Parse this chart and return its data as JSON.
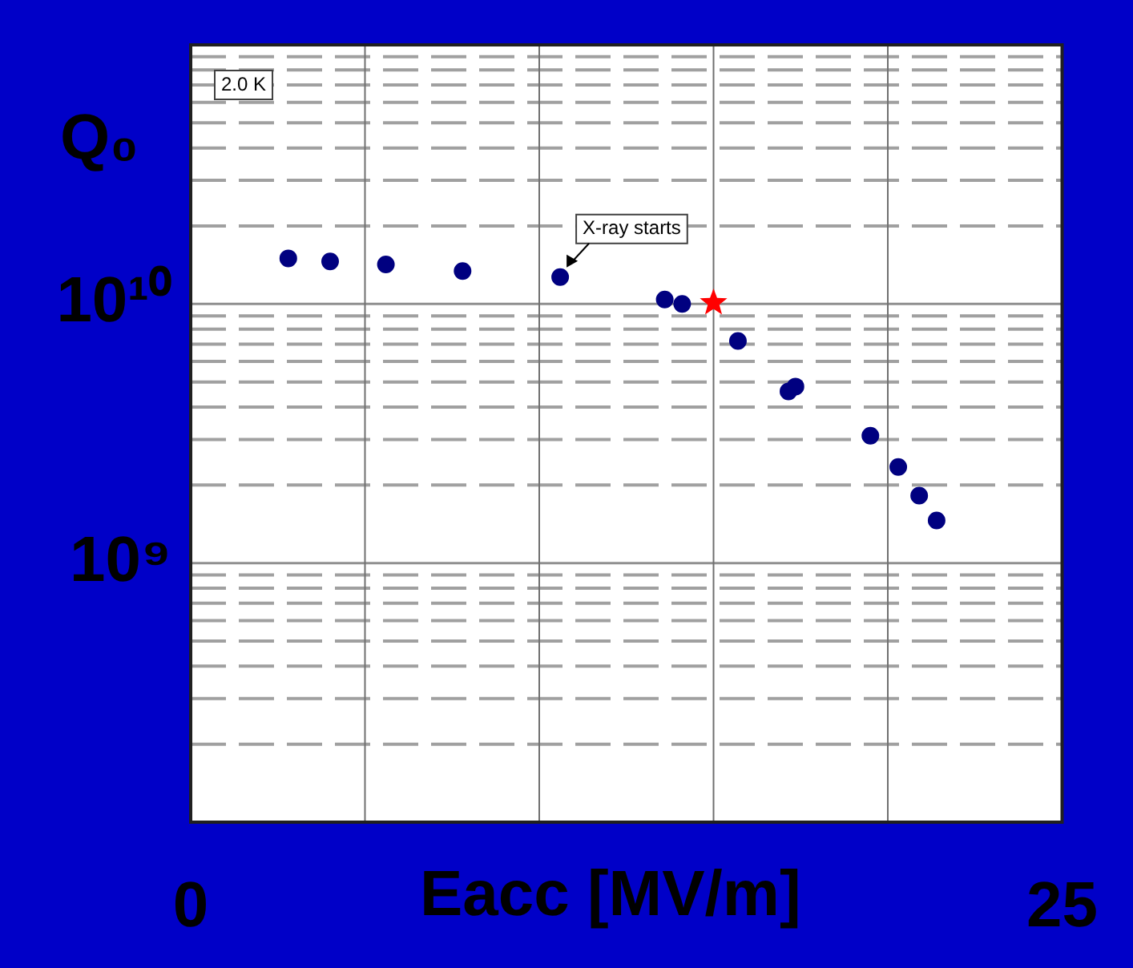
{
  "chart_data": {
    "type": "scatter",
    "ylabel": "Q₀",
    "xlabel": "Eacc [MV/m]",
    "log": "y",
    "grid": true,
    "legend": false,
    "xlim": [
      0,
      25
    ],
    "xticks": [
      0,
      {
        "value": 5,
        "label": null
      },
      {
        "value": 10,
        "label": null
      },
      {
        "value": 15,
        "label": null
      },
      {
        "value": 20,
        "label": null
      },
      25
    ],
    "ylim": [
      100000000.0,
      100000000000.0
    ],
    "yticks": [
      {
        "value": 100000000.0,
        "label": null
      },
      {
        "value": 200000000.0,
        "label": null
      },
      {
        "value": 300000000.0,
        "label": null
      },
      {
        "value": 400000000.0,
        "label": null
      },
      {
        "value": 500000000.0,
        "label": null
      },
      {
        "value": 600000000.0,
        "label": null
      },
      {
        "value": 700000000.0,
        "label": null
      },
      {
        "value": 800000000.0,
        "label": null
      },
      {
        "value": 900000000.0,
        "label": null
      },
      {
        "value": 1000000000.0,
        "label": "10⁹"
      },
      {
        "value": 2000000000.0,
        "label": null
      },
      {
        "value": 3000000000.0,
        "label": null
      },
      {
        "value": 4000000000.0,
        "label": null
      },
      {
        "value": 5000000000.0,
        "label": null
      },
      {
        "value": 6000000000.0,
        "label": null
      },
      {
        "value": 7000000000.0,
        "label": null
      },
      {
        "value": 8000000000.0,
        "label": null
      },
      {
        "value": 9000000000.0,
        "label": null
      },
      {
        "value": 10000000000.0,
        "label": "10¹⁰"
      },
      {
        "value": 20000000000.0,
        "label": null
      },
      {
        "value": 30000000000.0,
        "label": null
      },
      {
        "value": 40000000000.0,
        "label": null
      },
      {
        "value": 50000000000.0,
        "label": null
      },
      {
        "value": 60000000000.0,
        "label": null
      },
      {
        "value": 70000000000.0,
        "label": null
      },
      {
        "value": 80000000000.0,
        "label": null
      },
      {
        "value": 90000000000.0,
        "label": null
      },
      {
        "value": 100000000000.0,
        "label": null
      }
    ],
    "series": [
      {
        "color": "#000080",
        "marker": "circle",
        "x": [
          2.8,
          4.0,
          5.6,
          7.8,
          10.6,
          13.6,
          14.1,
          15.7,
          17.15,
          17.35,
          19.5,
          20.3,
          20.9,
          21.4
        ],
        "values": [
          15000000000.0,
          14600000000.0,
          14200000000.0,
          13400000000.0,
          12700000000.0,
          10400000000.0,
          10000000000.0,
          7200000000.0,
          4600000000.0,
          4800000000.0,
          3100000000.0,
          2350000000.0,
          1820000000.0,
          1460000000.0
        ]
      },
      {
        "color": "#ff0000",
        "marker": "star",
        "x": [
          15.0
        ],
        "values": [
          10100000000.0
        ]
      }
    ],
    "annotations": [
      "2.0 K",
      {
        "text": "X-ray starts",
        "x": 10.6,
        "y": 12700000000.0
      }
    ]
  }
}
